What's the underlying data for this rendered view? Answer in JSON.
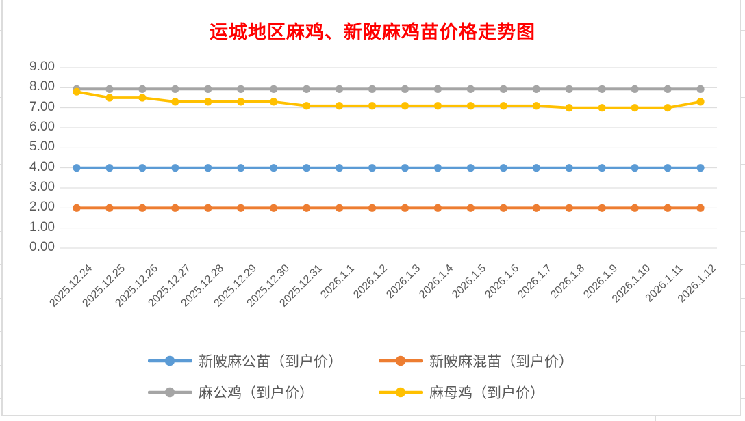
{
  "chart_data": {
    "type": "line",
    "title": "运城地区麻鸡、新陂麻鸡苗价格走势图",
    "title_color": "#FF0000",
    "categories": [
      "2025.12.24",
      "2025.12.25",
      "2025.12.26",
      "2025.12.27",
      "2025.12.28",
      "2025.12.29",
      "2025.12.30",
      "2025.12.31",
      "2026.1.1",
      "2026.1.2",
      "2026.1.3",
      "2026.1.4",
      "2026.1.5",
      "2026.1.6",
      "2026.1.7",
      "2026.1.8",
      "2026.1.9",
      "2026.1.10",
      "2026.1.11",
      "2026.1.12"
    ],
    "series": [
      {
        "name": "新陂麻公苗（到户价）",
        "color": "#5B9BD5",
        "values": [
          4.0,
          4.0,
          4.0,
          4.0,
          4.0,
          4.0,
          4.0,
          4.0,
          4.0,
          4.0,
          4.0,
          4.0,
          4.0,
          4.0,
          4.0,
          4.0,
          4.0,
          4.0,
          4.0,
          4.0
        ]
      },
      {
        "name": "新陂麻混苗（到户价）",
        "color": "#ED7D31",
        "values": [
          2.0,
          2.0,
          2.0,
          2.0,
          2.0,
          2.0,
          2.0,
          2.0,
          2.0,
          2.0,
          2.0,
          2.0,
          2.0,
          2.0,
          2.0,
          2.0,
          2.0,
          2.0,
          2.0,
          2.0
        ]
      },
      {
        "name": "麻公鸡（到户价）",
        "color": "#A5A5A5",
        "values": [
          7.93,
          7.93,
          7.93,
          7.93,
          7.93,
          7.93,
          7.93,
          7.93,
          7.93,
          7.93,
          7.93,
          7.93,
          7.93,
          7.93,
          7.93,
          7.93,
          7.93,
          7.93,
          7.93,
          7.93
        ]
      },
      {
        "name": "麻母鸡（到户价）",
        "color": "#FFC000",
        "values": [
          7.8,
          7.5,
          7.5,
          7.3,
          7.3,
          7.3,
          7.3,
          7.1,
          7.1,
          7.1,
          7.1,
          7.1,
          7.1,
          7.1,
          7.1,
          7.0,
          7.0,
          7.0,
          7.0,
          7.3
        ]
      }
    ],
    "ylim": [
      0,
      9
    ],
    "y_ticks": [
      "0.00",
      "1.00",
      "2.00",
      "3.00",
      "4.00",
      "5.00",
      "6.00",
      "7.00",
      "8.00",
      "9.00"
    ],
    "grid": true,
    "legend_position": "bottom",
    "axis_label_color": "#595959",
    "gridline_color": "#D9D9D9"
  },
  "spreadsheet": {
    "cell_border_color": "#DCDCDC"
  }
}
